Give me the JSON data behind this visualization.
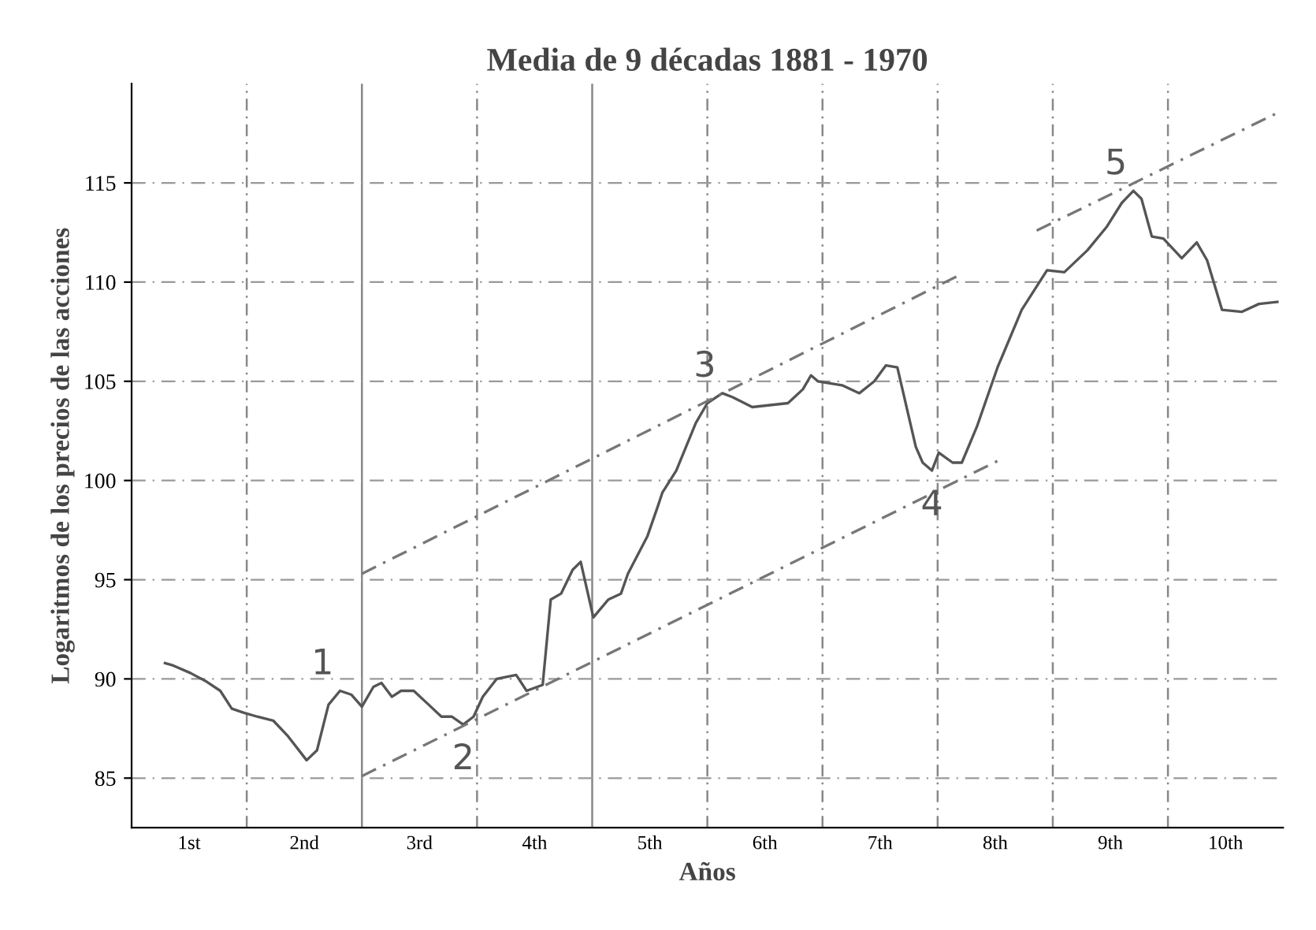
{
  "chart_data": {
    "type": "line",
    "title": "Media de 9 décadas 1881 - 1970",
    "xlabel": "Años",
    "ylabel": "Logaritmos de los precios de las acciones",
    "xlim": [
      0,
      10
    ],
    "ylim": [
      82.5,
      120
    ],
    "xticks": [
      {
        "value": 0.5,
        "label": "1st"
      },
      {
        "value": 1.5,
        "label": "2nd"
      },
      {
        "value": 2.5,
        "label": "3rd"
      },
      {
        "value": 3.5,
        "label": "4th"
      },
      {
        "value": 4.5,
        "label": "5th"
      },
      {
        "value": 5.5,
        "label": "6th"
      },
      {
        "value": 6.5,
        "label": "7th"
      },
      {
        "value": 7.5,
        "label": "8th"
      },
      {
        "value": 8.5,
        "label": "9th"
      },
      {
        "value": 9.5,
        "label": "10th"
      }
    ],
    "yticks": [
      85,
      90,
      95,
      100,
      105,
      110,
      115
    ],
    "grid": "y",
    "series": [
      {
        "color": "#555555",
        "line_style": "solid",
        "x": [
          0.29,
          0.35,
          0.51,
          0.64,
          0.77,
          0.87,
          0.97,
          1.09,
          1.23,
          1.36,
          1.52,
          1.61,
          1.71,
          1.81,
          1.91,
          2.0,
          2.1,
          2.17,
          2.26,
          2.34,
          2.45,
          2.58,
          2.69,
          2.78,
          2.88,
          2.97,
          3.05,
          3.17,
          3.34,
          3.43,
          3.57,
          3.64,
          3.73,
          3.83,
          3.9,
          4.01,
          4.14,
          4.25,
          4.31,
          4.48,
          4.57,
          4.61,
          4.73,
          4.9,
          5.0,
          5.13,
          5.22,
          5.39,
          5.7,
          5.83,
          5.9,
          5.96,
          6.17,
          6.32,
          6.45,
          6.55,
          6.65,
          6.71,
          6.81,
          6.87,
          6.95,
          7.01,
          7.13,
          7.21,
          7.34,
          7.52,
          7.73,
          7.95,
          8.1,
          8.3,
          8.47,
          8.6,
          8.7,
          8.77,
          8.86,
          8.96,
          9.12,
          9.25,
          9.34,
          9.47,
          9.64,
          9.79,
          9.95
        ],
        "values": [
          90.8,
          90.7,
          90.3,
          89.9,
          89.4,
          88.5,
          88.3,
          88.1,
          87.9,
          87.1,
          85.9,
          86.4,
          88.7,
          89.4,
          89.2,
          88.6,
          89.6,
          89.8,
          89.1,
          89.4,
          89.4,
          88.7,
          88.1,
          88.1,
          87.7,
          88.1,
          89.1,
          90.0,
          90.2,
          89.4,
          89.7,
          94.0,
          94.3,
          95.5,
          95.9,
          93.1,
          94.0,
          94.3,
          95.3,
          97.2,
          98.7,
          99.4,
          100.5,
          102.9,
          103.9,
          104.4,
          104.2,
          103.7,
          103.9,
          104.6,
          105.3,
          105.0,
          104.8,
          104.4,
          105.0,
          105.8,
          105.7,
          104.2,
          101.7,
          100.9,
          100.5,
          101.4,
          100.9,
          100.9,
          102.7,
          105.7,
          108.6,
          110.6,
          110.5,
          111.6,
          112.8,
          114.0,
          114.6,
          114.2,
          112.3,
          112.2,
          111.2,
          112.0,
          111.1,
          108.6,
          108.5,
          108.9,
          109.0
        ]
      },
      {
        "color": "#777777",
        "line_style": "dashed",
        "x": [
          2.0,
          7.17
        ],
        "values": [
          95.3,
          110.3
        ]
      },
      {
        "color": "#777777",
        "line_style": "dashed",
        "x": [
          2.0,
          7.56
        ],
        "values": [
          85.1,
          101.1
        ]
      },
      {
        "color": "#777777",
        "line_style": "dashed",
        "x": [
          7.86,
          9.94
        ],
        "values": [
          112.6,
          118.5
        ]
      }
    ],
    "ref_lines": [
      {
        "axis": "x",
        "value": 1,
        "line_style": "dashed",
        "color": "#888888"
      },
      {
        "axis": "x",
        "value": 2,
        "line_style": "solid",
        "color": "#888888"
      },
      {
        "axis": "x",
        "value": 3,
        "line_style": "dashed",
        "color": "#888888"
      },
      {
        "axis": "x",
        "value": 4,
        "line_style": "solid",
        "color": "#888888"
      },
      {
        "axis": "x",
        "value": 5,
        "line_style": "dashed",
        "color": "#888888"
      },
      {
        "axis": "x",
        "value": 6,
        "line_style": "dashed",
        "color": "#888888"
      },
      {
        "axis": "x",
        "value": 7,
        "line_style": "dashed",
        "color": "#888888"
      },
      {
        "axis": "x",
        "value": 8,
        "line_style": "dashed",
        "color": "#888888"
      },
      {
        "axis": "x",
        "value": 9,
        "line_style": "dashed",
        "color": "#888888"
      }
    ],
    "annotations": [
      {
        "text": "1",
        "x": 1.81,
        "y": 89.4
      },
      {
        "text": "2",
        "x": 2.88,
        "y": 87.7
      },
      {
        "text": "3",
        "x": 5.13,
        "y": 104.4
      },
      {
        "text": "4",
        "x": 6.95,
        "y": 100.5
      },
      {
        "text": "5",
        "x": 8.7,
        "y": 114.6
      }
    ]
  }
}
